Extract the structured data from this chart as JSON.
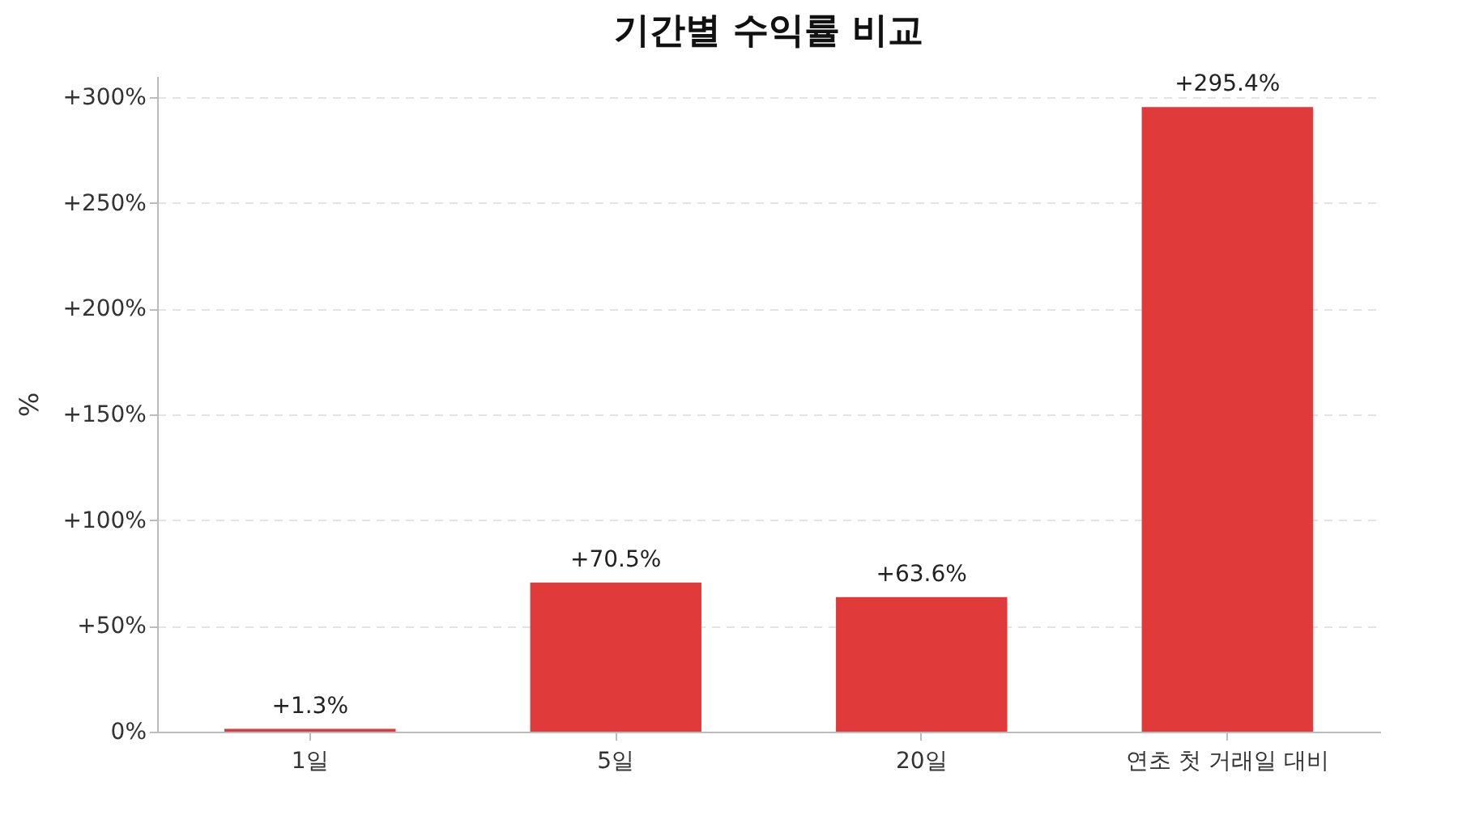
{
  "chart_data": {
    "type": "bar",
    "title": "기간별 수익률 비교",
    "ylabel": "%",
    "categories": [
      "1일",
      "5일",
      "20일",
      "연초 첫 거래일 대비"
    ],
    "values": [
      1.3,
      70.5,
      63.6,
      295.4
    ],
    "value_labels": [
      "+1.3%",
      "+70.5%",
      "+63.6%",
      "+295.4%"
    ],
    "color": "#e03a3a",
    "ylim": [
      0,
      310
    ],
    "yticks": [
      {
        "value": 0,
        "label": "0%"
      },
      {
        "value": 50,
        "label": "+50%"
      },
      {
        "value": 100,
        "label": "+100%"
      },
      {
        "value": 150,
        "label": "+150%"
      },
      {
        "value": 200,
        "label": "+200%"
      },
      {
        "value": 250,
        "label": "+250%"
      },
      {
        "value": 300,
        "label": "+300%"
      }
    ],
    "grid": "y"
  }
}
